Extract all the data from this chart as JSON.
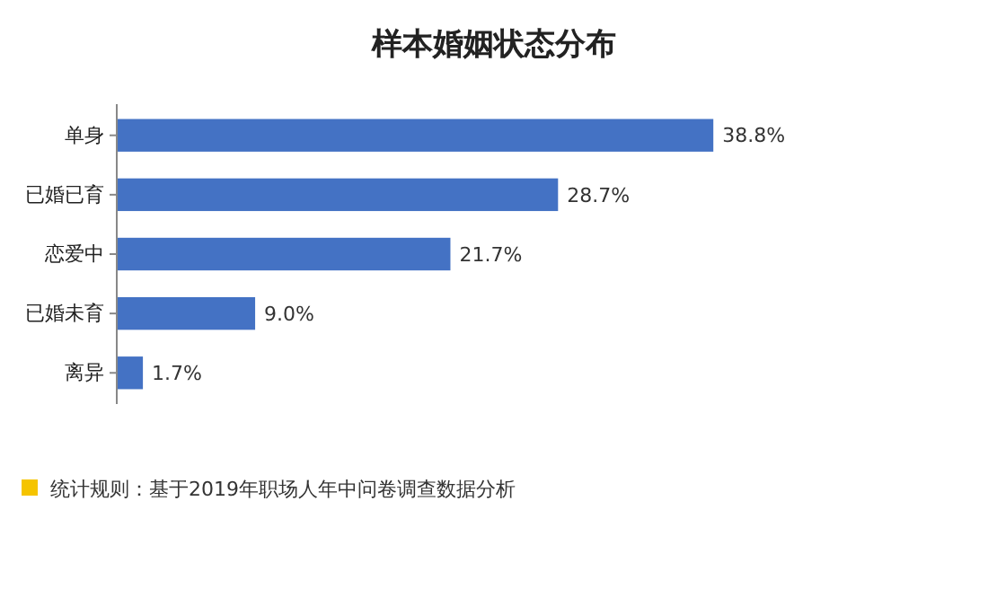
{
  "chart_data": {
    "type": "bar",
    "orientation": "horizontal",
    "title": "样本婚姻状态分布",
    "categories": [
      "单身",
      "已婚已育",
      "恋爱中",
      "已婚未育",
      "离异"
    ],
    "values": [
      38.8,
      28.7,
      21.7,
      9.0,
      1.7
    ],
    "value_labels": [
      "38.8%",
      "28.7%",
      "21.7%",
      "9.0%",
      "1.7%"
    ],
    "color": "#4472c4",
    "annotations": [
      "统计规则：基于2019年职场人年中问卷调查数据分析"
    ]
  }
}
